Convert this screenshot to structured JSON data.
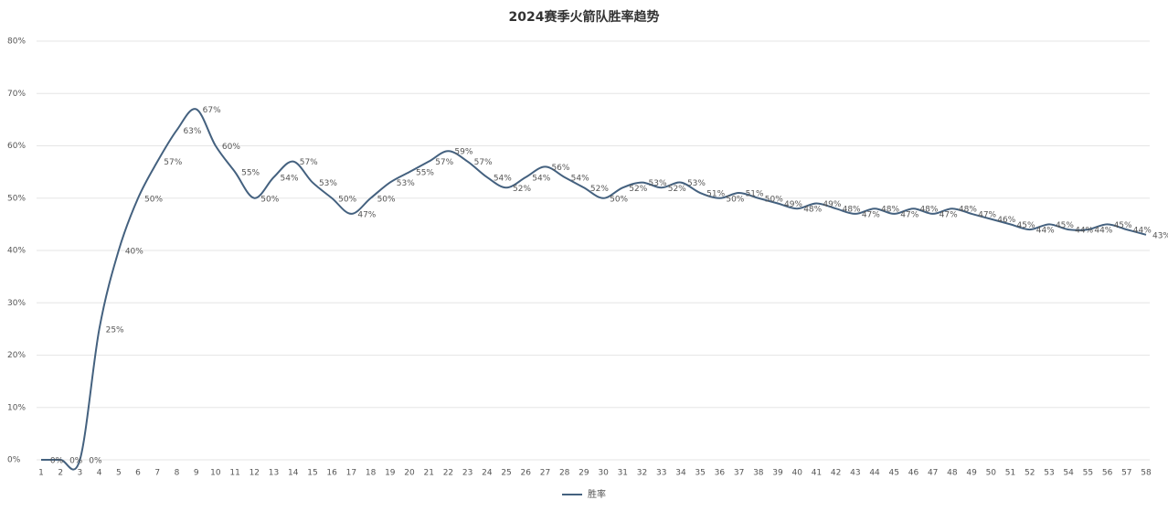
{
  "chart_data": {
    "type": "line",
    "title": "2024赛季火箭队胜率趋势",
    "categories": [
      "1",
      "2",
      "3",
      "4",
      "5",
      "6",
      "7",
      "8",
      "9",
      "10",
      "11",
      "12",
      "13",
      "14",
      "15",
      "16",
      "17",
      "18",
      "19",
      "20",
      "21",
      "22",
      "23",
      "24",
      "25",
      "26",
      "27",
      "28",
      "29",
      "30",
      "31",
      "32",
      "33",
      "34",
      "35",
      "36",
      "37",
      "38",
      "39",
      "40",
      "41",
      "42",
      "43",
      "44",
      "45",
      "46",
      "47",
      "48",
      "49",
      "50",
      "51",
      "52",
      "53",
      "54",
      "55",
      "56",
      "57",
      "58"
    ],
    "series": [
      {
        "name": "胜率",
        "color": "#44617f",
        "values": [
          0,
          0,
          0,
          25,
          40,
          50,
          57,
          63,
          67,
          60,
          55,
          50,
          54,
          57,
          53,
          50,
          47,
          50,
          53,
          55,
          57,
          59,
          57,
          54,
          52,
          54,
          56,
          54,
          52,
          50,
          52,
          53,
          52,
          53,
          51,
          50,
          51,
          50,
          49,
          48,
          49,
          48,
          47,
          48,
          47,
          48,
          47,
          48,
          47,
          46,
          45,
          44,
          45,
          44,
          44,
          45,
          44,
          43
        ],
        "value_labels": [
          "0%",
          "0%",
          "0%",
          "25%",
          "40%",
          "50%",
          "57%",
          "63%",
          "67%",
          "60%",
          "55%",
          "50%",
          "54%",
          "57%",
          "53%",
          "50%",
          "47%",
          "50%",
          "53%",
          "55%",
          "57%",
          "59%",
          "57%",
          "54%",
          "52%",
          "54%",
          "56%",
          "54%",
          "52%",
          "50%",
          "52%",
          "53%",
          "52%",
          "53%",
          "51%",
          "50%",
          "51%",
          "50%",
          "49%",
          "48%",
          "49%",
          "48%",
          "47%",
          "48%",
          "47%",
          "48%",
          "47%",
          "48%",
          "47%",
          "46%",
          "45%",
          "44%",
          "45%",
          "44%",
          "44%",
          "45%",
          "44%",
          "43%"
        ]
      }
    ],
    "ylim": [
      0,
      80
    ],
    "yticks": [
      {
        "value": 0,
        "label": "0%"
      },
      {
        "value": 10,
        "label": "10%"
      },
      {
        "value": 20,
        "label": "20%"
      },
      {
        "value": 30,
        "label": "30%"
      },
      {
        "value": 40,
        "label": "40%"
      },
      {
        "value": 50,
        "label": "50%"
      },
      {
        "value": 60,
        "label": "60%"
      },
      {
        "value": 70,
        "label": "70%"
      },
      {
        "value": 80,
        "label": "80%"
      }
    ],
    "grid": true,
    "legend": "bottom"
  }
}
